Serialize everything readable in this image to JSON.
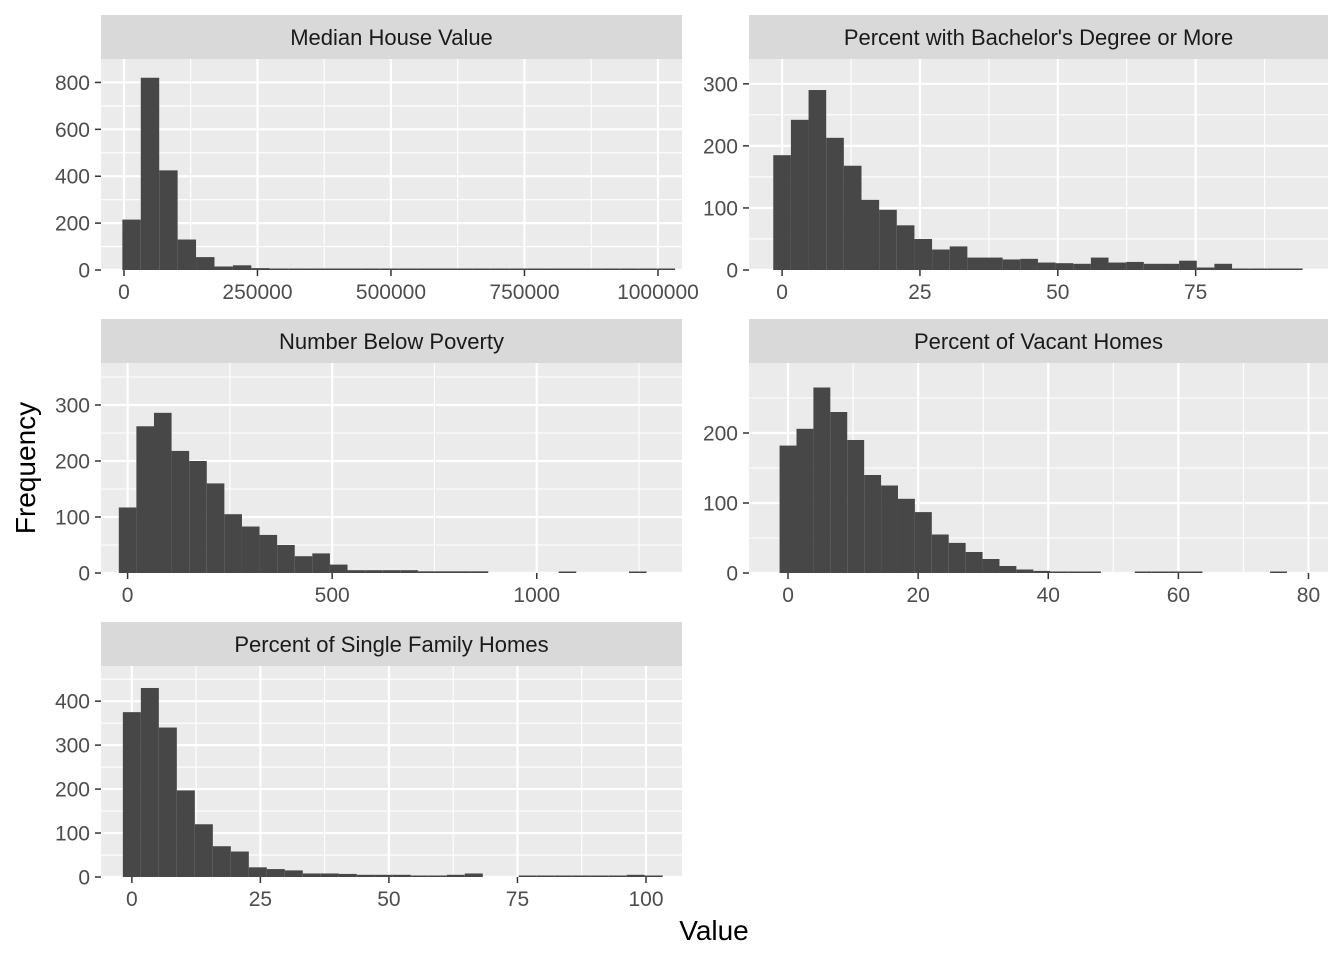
{
  "colors": {
    "panel_bg": "#EBEBEB",
    "strip_bg": "#D9D9D9",
    "grid": "#FFFFFF",
    "bar_fill": "#474747",
    "tick_text": "#4D4D4D",
    "axis_title": "#000000"
  },
  "chart_data": {
    "type": "bar",
    "layout": "facet grid, 2 columns, free scales",
    "xlabel": "Value",
    "ylabel": "Frequency",
    "grid": true,
    "panels": [
      {
        "title": "Median House Value",
        "xlim": [
          -43000,
          1045000
        ],
        "ylim": [
          0,
          900
        ],
        "xticks": [
          0,
          250000,
          500000,
          750000,
          1000000
        ],
        "xtick_labels": [
          "0",
          "250000",
          "500000",
          "750000",
          "1000000"
        ],
        "yticks": [
          0,
          200,
          400,
          600,
          800
        ],
        "ytick_labels": [
          "0",
          "200",
          "400",
          "600",
          "800"
        ],
        "bin_start": -3000,
        "bin_width": 34500,
        "values": [
          215,
          820,
          425,
          130,
          55,
          15,
          20,
          8,
          5,
          3,
          2,
          2,
          3,
          2,
          2,
          2,
          1,
          2,
          1,
          1,
          1,
          1,
          1,
          1,
          1,
          1,
          1,
          1,
          1,
          1
        ]
      },
      {
        "title": "Percent with Bachelor's Degree or More",
        "xlim": [
          -6,
          99
        ],
        "ylim": [
          0,
          340
        ],
        "xticks": [
          0,
          25,
          50,
          75
        ],
        "xtick_labels": [
          "0",
          "25",
          "50",
          "75"
        ],
        "yticks": [
          0,
          100,
          200,
          300
        ],
        "ytick_labels": [
          "0",
          "100",
          "200",
          "300"
        ],
        "bin_start": -1.6,
        "bin_width": 3.2,
        "values": [
          185,
          242,
          290,
          213,
          168,
          113,
          97,
          72,
          50,
          33,
          38,
          20,
          20,
          17,
          18,
          12,
          11,
          10,
          20,
          12,
          13,
          10,
          10,
          15,
          4,
          10,
          2,
          2,
          2,
          2
        ]
      },
      {
        "title": "Number Below Poverty",
        "xlim": [
          -65,
          1355
        ],
        "ylim": [
          0,
          375
        ],
        "xticks": [
          0,
          500,
          1000
        ],
        "xtick_labels": [
          "0",
          "500",
          "1000"
        ],
        "yticks": [
          0,
          100,
          200,
          300
        ],
        "ytick_labels": [
          "0",
          "100",
          "200",
          "300"
        ],
        "bin_start": -21.5,
        "bin_width": 43,
        "values": [
          117,
          262,
          286,
          218,
          200,
          160,
          105,
          83,
          68,
          50,
          30,
          35,
          15,
          5,
          5,
          5,
          5,
          3,
          3,
          3,
          3,
          0,
          0,
          0,
          0,
          1,
          0,
          0,
          0,
          1
        ]
      },
      {
        "title": "Percent of Vacant Homes",
        "xlim": [
          -6,
          83
        ],
        "ylim": [
          0,
          300
        ],
        "xticks": [
          0,
          20,
          40,
          60,
          80
        ],
        "xtick_labels": [
          "0",
          "20",
          "40",
          "60",
          "80"
        ],
        "yticks": [
          0,
          100,
          200
        ],
        "ytick_labels": [
          "0",
          "100",
          "200"
        ],
        "bin_start": -1.3,
        "bin_width": 2.6,
        "values": [
          182,
          206,
          265,
          230,
          190,
          140,
          125,
          106,
          87,
          55,
          43,
          30,
          20,
          10,
          5,
          3,
          1,
          1,
          1,
          0,
          0,
          1,
          1,
          1,
          1,
          0,
          0,
          0,
          0,
          2
        ]
      },
      {
        "title": "Percent of Single Family Homes",
        "xlim": [
          -6,
          107
        ],
        "ylim": [
          0,
          480
        ],
        "xticks": [
          0,
          25,
          50,
          75,
          100
        ],
        "xtick_labels": [
          "0",
          "25",
          "50",
          "75",
          "100"
        ],
        "yticks": [
          0,
          100,
          200,
          300,
          400
        ],
        "ytick_labels": [
          "0",
          "100",
          "200",
          "300",
          "400"
        ],
        "bin_start": -1.75,
        "bin_width": 3.5,
        "values": [
          375,
          430,
          340,
          197,
          120,
          70,
          58,
          22,
          18,
          15,
          8,
          8,
          7,
          5,
          5,
          5,
          3,
          2,
          5,
          8,
          0,
          0,
          1,
          1,
          3,
          1,
          1,
          1,
          5,
          2
        ]
      }
    ]
  }
}
